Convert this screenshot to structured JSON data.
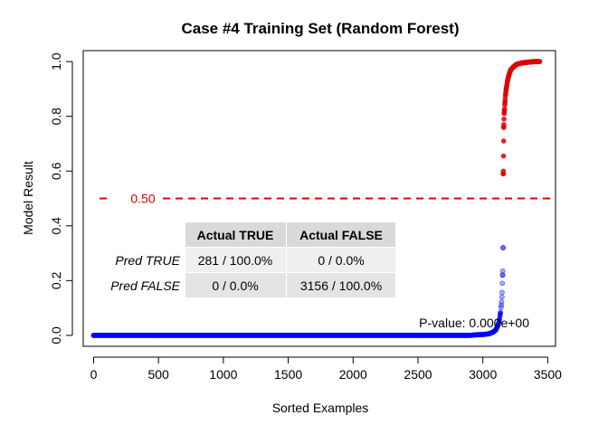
{
  "chart_data": {
    "type": "scatter",
    "title": "Case #4 Training Set (Random Forest)",
    "xlabel": "Sorted Examples",
    "ylabel": "Model Result",
    "xlim": [
      -80,
      3560
    ],
    "ylim": [
      -0.04,
      1.04
    ],
    "x_ticks": [
      0,
      500,
      1000,
      1500,
      2000,
      2500,
      3000,
      3500
    ],
    "y_ticks": [
      0.0,
      0.2,
      0.4,
      0.6,
      0.8,
      1.0
    ],
    "y_tick_labels": [
      "0.0",
      "0.2",
      "0.4",
      "0.6",
      "0.8",
      "1.0"
    ],
    "grid": false,
    "threshold": {
      "value": 0.5,
      "label": "0.50",
      "color": "#e00000"
    },
    "series": [
      {
        "color": "#0000ff",
        "points": [
          [
            0,
            0.0
          ],
          [
            500,
            0.0
          ],
          [
            1000,
            0.0
          ],
          [
            1500,
            0.0
          ],
          [
            2000,
            0.0
          ],
          [
            2500,
            0.0
          ],
          [
            2900,
            0.0
          ],
          [
            2950,
            0.002
          ],
          [
            3000,
            0.003
          ],
          [
            3050,
            0.006
          ],
          [
            3080,
            0.012
          ],
          [
            3100,
            0.02
          ],
          [
            3115,
            0.035
          ],
          [
            3125,
            0.05
          ],
          [
            3135,
            0.08
          ],
          [
            3142,
            0.11
          ],
          [
            3147,
            0.14
          ],
          [
            3150,
            0.19
          ],
          [
            3152,
            0.22
          ],
          [
            3154,
            0.235
          ],
          [
            3156,
            0.32
          ]
        ]
      },
      {
        "color": "#e00000",
        "points": [
          [
            3157,
            0.59
          ],
          [
            3158,
            0.6
          ],
          [
            3160,
            0.71
          ],
          [
            3161,
            0.76
          ],
          [
            3162,
            0.77
          ],
          [
            3164,
            0.81
          ],
          [
            3166,
            0.82
          ],
          [
            3170,
            0.85
          ],
          [
            3175,
            0.88
          ],
          [
            3180,
            0.9
          ],
          [
            3190,
            0.93
          ],
          [
            3200,
            0.95
          ],
          [
            3215,
            0.97
          ],
          [
            3235,
            0.98
          ],
          [
            3260,
            0.99
          ],
          [
            3300,
            0.995
          ],
          [
            3350,
            0.998
          ],
          [
            3400,
            1.0
          ],
          [
            3437,
            1.0
          ]
        ]
      }
    ],
    "confusion_table": {
      "col_headers": [
        "Actual TRUE",
        "Actual FALSE"
      ],
      "rows": [
        {
          "label": "Pred TRUE",
          "cells": [
            "281 / 100.0%",
            "0 / 0.0%"
          ]
        },
        {
          "label": "Pred FALSE",
          "cells": [
            "0 / 0.0%",
            "3156 / 100.0%"
          ]
        }
      ]
    },
    "annotation": "P-value: 0.000e+00"
  }
}
